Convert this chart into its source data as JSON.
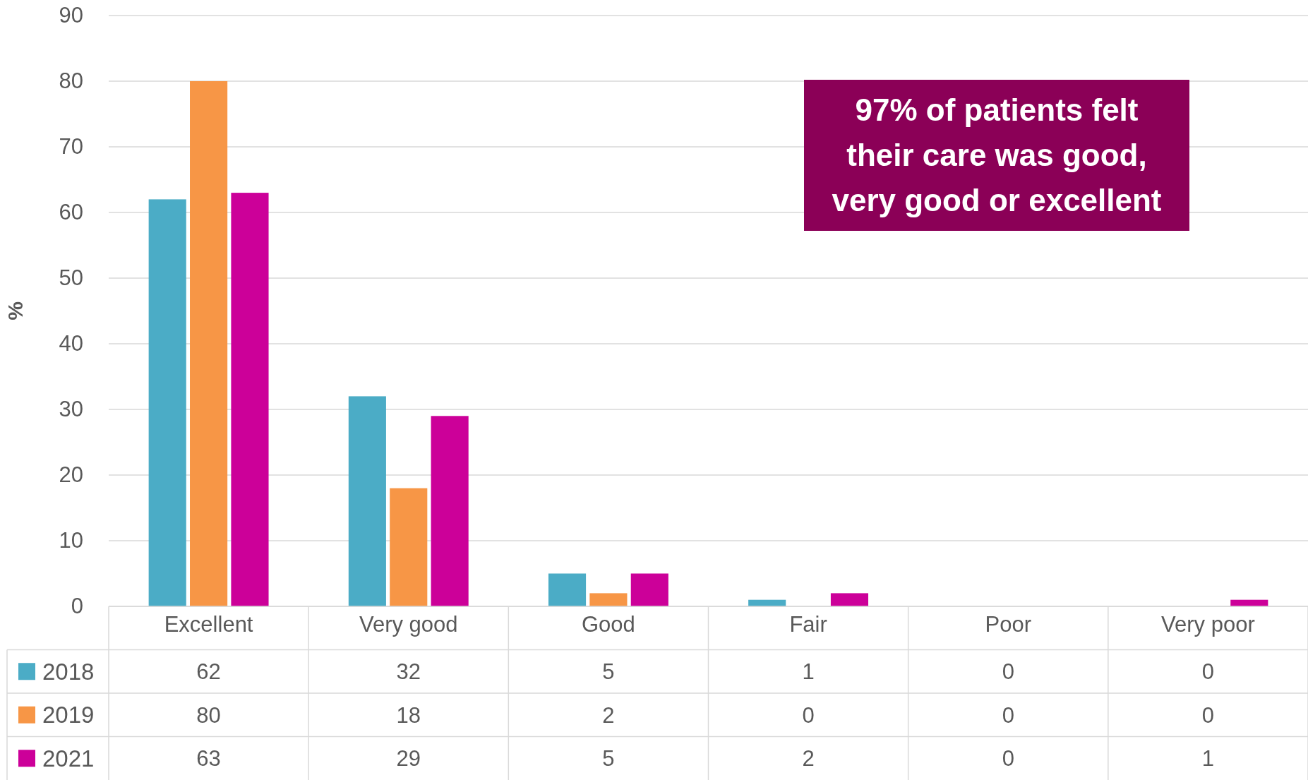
{
  "chart_data": {
    "type": "bar",
    "ylabel": "%",
    "categories": [
      "Excellent",
      "Very good",
      "Good",
      "Fair",
      "Poor",
      "Very poor"
    ],
    "series": [
      {
        "name": "2018",
        "color": "#4bacc6",
        "values": [
          62,
          32,
          5,
          1,
          0,
          0
        ]
      },
      {
        "name": "2019",
        "color": "#f79646",
        "values": [
          80,
          18,
          2,
          0,
          0,
          0
        ]
      },
      {
        "name": "2021",
        "color": "#cc0099",
        "values": [
          63,
          29,
          5,
          2,
          0,
          1
        ]
      }
    ],
    "ylim": [
      0,
      90
    ],
    "yticks": [
      0,
      10,
      20,
      30,
      40,
      50,
      60,
      70,
      80,
      90
    ],
    "grid": "y",
    "legend": "bottom",
    "data_labels": true,
    "annotations": [
      "97% of patients felt their care was good, very good or excellent"
    ]
  }
}
